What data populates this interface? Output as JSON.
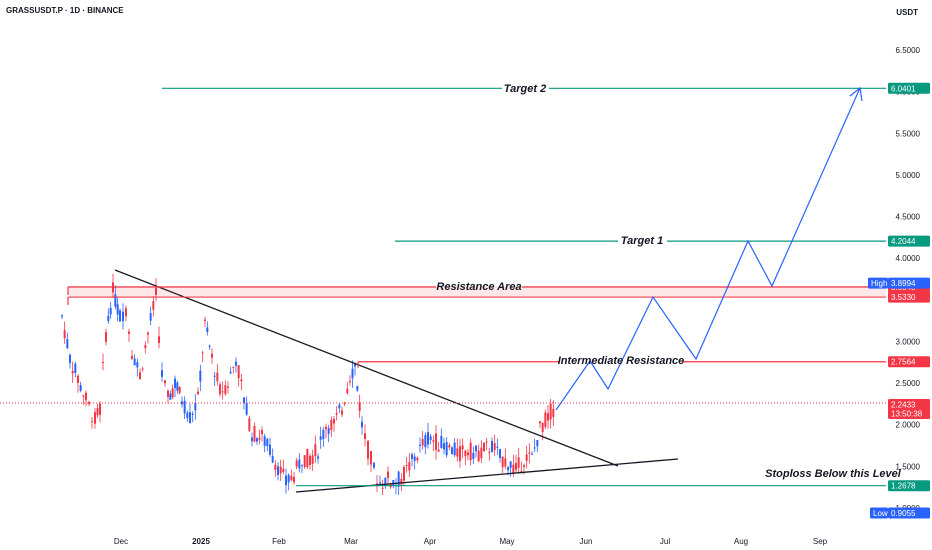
{
  "header": {
    "symbol_line": "GRASSUSDT.P · 1D · BINANCE",
    "currency": "USDT"
  },
  "chart_data": {
    "type": "candlestick",
    "y_ticks": [
      "6.5000",
      "6.0000",
      "5.5000",
      "5.0000",
      "4.5000",
      "4.0000",
      "3.0000",
      "2.5000",
      "2.0000",
      "1.5000",
      "1.0000"
    ],
    "y_tick_values": [
      6.5,
      6.0,
      5.5,
      5.0,
      4.5,
      4.0,
      3.0,
      2.5,
      2.0,
      1.5,
      1.0
    ],
    "x_ticks": [
      "Dec",
      "2025",
      "Feb",
      "Mar",
      "Apr",
      "May",
      "Jun",
      "Jul",
      "Aug",
      "Sep"
    ],
    "levels": [
      {
        "name": "Target 2",
        "value": 6.0401,
        "label": "6.0401",
        "color": "#089981"
      },
      {
        "name": "Target 1",
        "value": 4.2044,
        "label": "4.2044",
        "color": "#089981"
      },
      {
        "name": "Resistance Area",
        "value": 3.6543,
        "label": "3.6543",
        "color": "#f23645"
      },
      {
        "name": "",
        "value": 3.533,
        "label": "3.5330",
        "color": "#f23645"
      },
      {
        "name": "Intermediate Resistance",
        "value": 2.7564,
        "label": "2.7564",
        "color": "#f23645"
      },
      {
        "name": "Stoploss Below this Level",
        "value": 1.2678,
        "label": "1.2678",
        "color": "#089981"
      }
    ],
    "high": {
      "label": "High",
      "value": "3.8994"
    },
    "low": {
      "label": "Low",
      "value": "0.9055"
    },
    "current": {
      "value": "2.2433",
      "countdown": "13:50:38",
      "color": "#f23645"
    },
    "projection_path_prices": [
      2.38,
      2.75,
      2.42,
      3.5,
      2.78,
      4.2,
      3.6,
      6.05
    ]
  },
  "colors": {
    "up": "#089981",
    "down": "#f23645",
    "candle_blue": "#2962ff",
    "trend": "#131722",
    "projection": "#2962ff"
  }
}
